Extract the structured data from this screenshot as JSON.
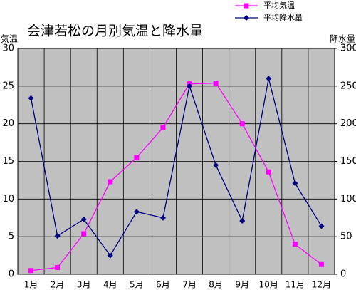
{
  "chart_data": {
    "type": "line",
    "title": "会津若松の月別気温と降水量",
    "ylabel": "気温",
    "y2label": "降水量",
    "categories": [
      "1月",
      "2月",
      "3月",
      "4月",
      "5月",
      "6月",
      "7月",
      "8月",
      "9月",
      "10月",
      "11月",
      "12月"
    ],
    "series": [
      {
        "name": "平均気温",
        "color": "#ff00ff",
        "marker": "square",
        "values": [
          0.5,
          0.9,
          5.4,
          12.3,
          15.5,
          19.5,
          25.3,
          25.4,
          20.0,
          13.6,
          4.0,
          1.3
        ]
      },
      {
        "name": "平均降水量",
        "color": "#000080",
        "marker": "diamond",
        "axis": "y2",
        "values": [
          234,
          51,
          73,
          25,
          83,
          75,
          250,
          145,
          71,
          260,
          121,
          64
        ]
      }
    ],
    "ylim": [
      0,
      30
    ],
    "yticks": [
      0,
      5,
      10,
      15,
      20,
      25,
      30
    ],
    "y2lim": [
      0,
      300
    ],
    "y2ticks": [
      0,
      50,
      100,
      150,
      200,
      250,
      300
    ],
    "grid": true,
    "legend": "top-right"
  }
}
